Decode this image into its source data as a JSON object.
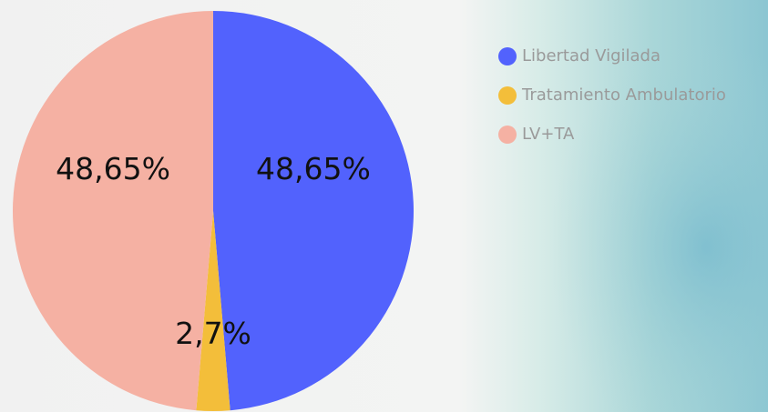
{
  "chart_data": {
    "type": "pie",
    "categories": [
      "Libertad Vigilada",
      "Tratamiento Ambulatorio",
      "LV+TA"
    ],
    "values": [
      48.65,
      2.7,
      48.65
    ],
    "value_labels": [
      "48,65%",
      "2,7%",
      "48,65%"
    ],
    "colors": [
      "#5262fd",
      "#f3be3a",
      "#f5b1a3"
    ],
    "legend": "top-right"
  }
}
